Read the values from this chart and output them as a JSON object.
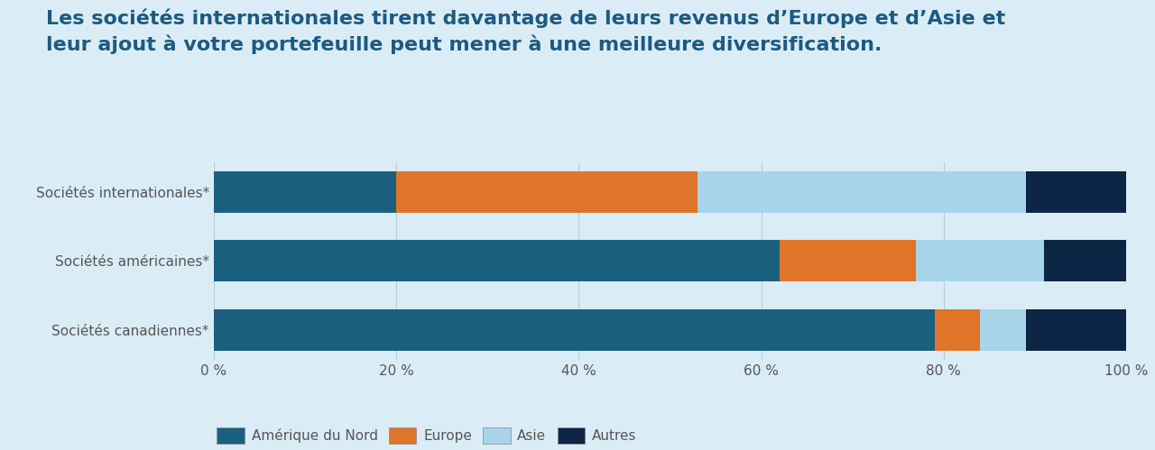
{
  "categories": [
    "Sociétés internationales*",
    "Sociétés américaines*",
    "Sociétés canadiennes*"
  ],
  "segments": [
    "Amérique du Nord",
    "Europe",
    "Asie",
    "Autres"
  ],
  "colors": [
    "#1c6080",
    "#e07428",
    "#a8d4ea",
    "#0d2545"
  ],
  "values": [
    [
      20,
      33,
      36,
      11
    ],
    [
      62,
      15,
      14,
      9
    ],
    [
      79,
      5,
      5,
      11
    ]
  ],
  "background_color": "#daedf7",
  "title_line1": "Les sociétés internationales tirent davantage de leurs revenus d’Europe et d’Asie et",
  "title_line2": "leur ajout à votre portefeuille peut mener à une meilleure diversification.",
  "title_color": "#1c5a82",
  "title_fontsize": 16,
  "xlabel_vals": [
    0,
    20,
    40,
    60,
    80,
    100
  ],
  "xlabel_labels": [
    "0 %",
    "20 %",
    "40 %",
    "60 %",
    "80 %",
    "100 %"
  ],
  "bar_height": 0.6,
  "ytick_color": "#555555",
  "grid_color": "#b5cdd8",
  "legend_fontsize": 11,
  "ytick_fontsize": 11,
  "xtick_fontsize": 11
}
